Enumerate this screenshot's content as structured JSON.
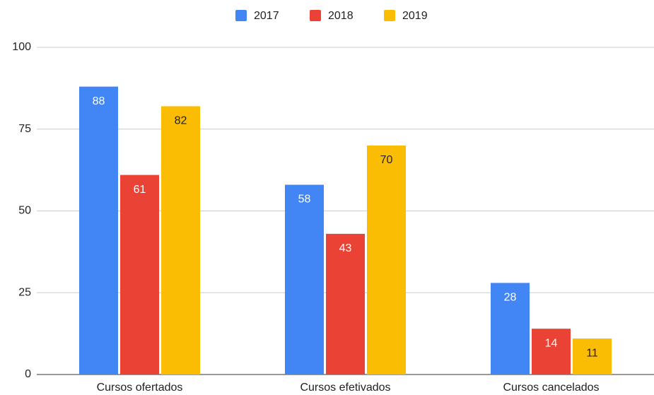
{
  "chart_data": {
    "type": "bar",
    "categories": [
      "Cursos ofertados",
      "Cursos efetivados",
      "Cursos cancelados"
    ],
    "series": [
      {
        "name": "2017",
        "color": "#4285f4",
        "values": [
          88,
          58,
          28
        ]
      },
      {
        "name": "2018",
        "color": "#ea4335",
        "values": [
          61,
          43,
          14
        ]
      },
      {
        "name": "2019",
        "color": "#fbbc04",
        "values": [
          82,
          70,
          11
        ]
      }
    ],
    "ylim": [
      0,
      100
    ],
    "yticks": [
      0,
      25,
      50,
      75,
      100
    ],
    "grid": true,
    "legend": "top"
  }
}
